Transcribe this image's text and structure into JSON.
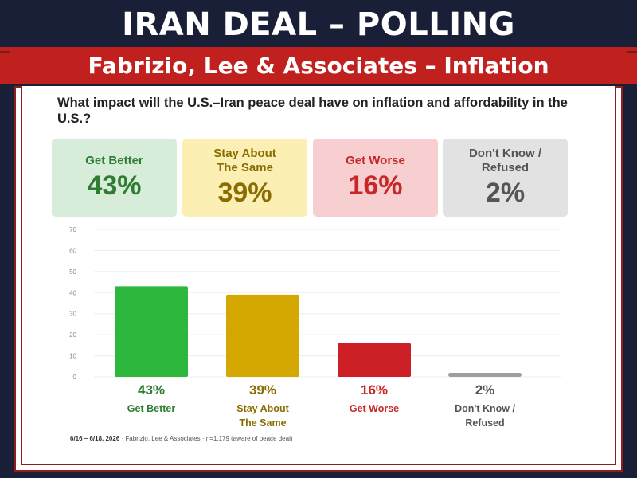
{
  "header": {
    "title": "IRAN DEAL – POLLING",
    "subtitle": "Fabrizio, Lee & Associates – Inflation"
  },
  "question": "What impact will the U.S.–Iran peace deal have on inflation and affordability in the U.S.?",
  "cards": [
    {
      "label": "Get Better",
      "value": "43%",
      "bg": "#d7ecd9",
      "fg": "#2e7d32"
    },
    {
      "label": "Stay About The Same",
      "value": "39%",
      "bg": "#fbefb4",
      "fg": "#8a6d00"
    },
    {
      "label": "Get Worse",
      "value": "16%",
      "bg": "#f8cfd1",
      "fg": "#c62828"
    },
    {
      "label": "Don't Know / Refused",
      "value": "2%",
      "bg": "#e2e2e2",
      "fg": "#555555"
    }
  ],
  "chart_data": {
    "type": "bar",
    "categories": [
      "Get Better",
      "Stay About The Same",
      "Get Worse",
      "Don't Know / Refused"
    ],
    "values": [
      43,
      39,
      16,
      2
    ],
    "value_labels": [
      "43%",
      "39%",
      "16%",
      "2%"
    ],
    "colors": [
      "#2db83d",
      "#d4a800",
      "#cc1f26",
      "#9e9e9e"
    ],
    "label_colors": [
      "#2e7d32",
      "#8a6d00",
      "#c62828",
      "#555555"
    ],
    "category_lines": [
      [
        "Get Better"
      ],
      [
        "Stay About",
        "The Same"
      ],
      [
        "Get Worse"
      ],
      [
        "Don't Know /",
        "Refused"
      ]
    ],
    "yticks": [
      0,
      10,
      20,
      30,
      40,
      50,
      60,
      70
    ],
    "ylim": [
      0,
      70
    ],
    "grid": true,
    "xlabel": "",
    "ylabel": ""
  },
  "source": {
    "date": "6/16 – 6/18, 2026",
    "text": " · Fabrizio, Lee & Associates · n=1,179 (aware of peace deal)"
  }
}
